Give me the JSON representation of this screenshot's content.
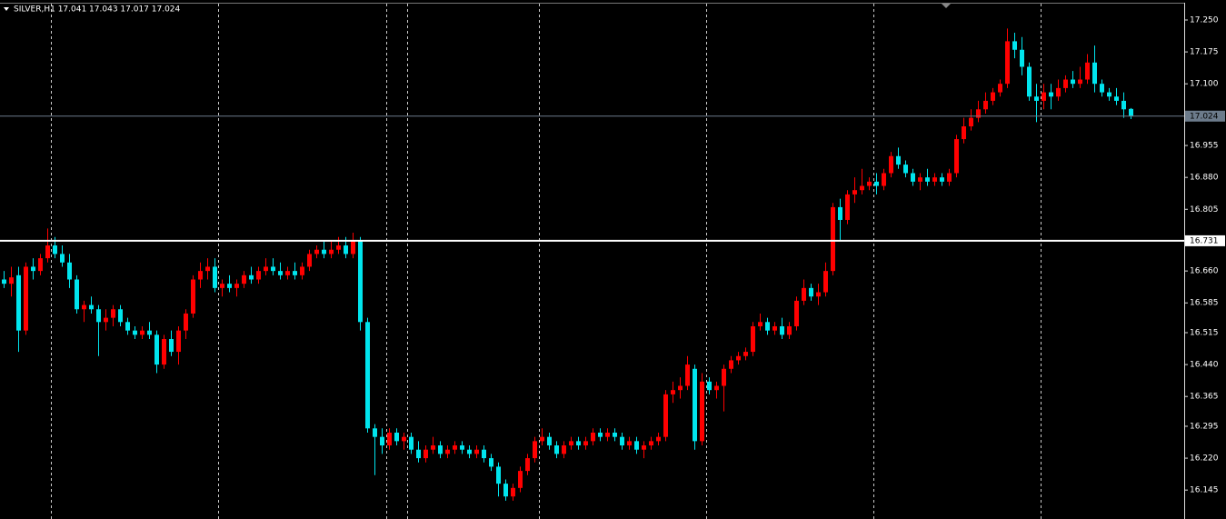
{
  "chart_data": {
    "type": "candlestick",
    "title": "SILVER,H1  17.041 17.043 17.017 17.024",
    "up_color": "#ff0000",
    "down_color": "#00e5ee",
    "ylim": [
      16.077,
      17.297
    ],
    "yticks": [
      {
        "value": 17.25,
        "label": "17.250"
      },
      17.175,
      {
        "value": 17.1,
        "label": "17.100"
      },
      16.955,
      {
        "value": 16.88,
        "label": "16.880"
      },
      16.805,
      {
        "value": 16.66,
        "label": "16.660"
      },
      16.585,
      16.515,
      {
        "value": 16.44,
        "label": "16.440"
      },
      16.365,
      16.295,
      {
        "value": 16.22,
        "label": "16.220"
      },
      16.145
    ],
    "hlines": [
      {
        "value": 17.024,
        "color": "#6c7b8b",
        "width": 1
      },
      {
        "value": 16.731,
        "color": "#ffffff",
        "width": 2
      }
    ],
    "open": [
      16.64,
      16.63,
      16.65,
      16.52,
      16.67,
      16.66,
      16.69,
      16.72,
      16.7,
      16.68,
      16.64,
      16.57,
      16.58,
      16.57,
      16.54,
      16.55,
      16.57,
      16.54,
      16.52,
      16.51,
      16.52,
      16.51,
      16.44,
      16.5,
      16.47,
      16.52,
      16.56,
      16.64,
      16.66,
      16.67,
      16.62,
      16.63,
      16.62,
      16.63,
      16.65,
      16.64,
      16.66,
      16.67,
      16.66,
      16.65,
      16.66,
      16.65,
      16.67,
      16.7,
      16.71,
      16.7,
      16.71,
      16.72,
      16.7,
      16.73,
      16.54,
      16.29,
      16.27,
      16.25,
      16.28,
      16.26,
      16.27,
      16.24,
      16.22,
      16.24,
      16.25,
      16.23,
      16.24,
      16.25,
      16.24,
      16.23,
      16.24,
      16.22,
      16.2,
      16.16,
      16.13,
      16.15,
      16.19,
      16.22,
      16.26,
      16.27,
      16.25,
      16.23,
      16.25,
      16.26,
      16.25,
      16.26,
      16.28,
      16.27,
      16.28,
      16.27,
      16.25,
      16.26,
      16.24,
      16.25,
      16.26,
      16.27,
      16.37,
      16.38,
      16.39,
      16.43,
      16.26,
      16.4,
      16.38,
      16.39,
      16.43,
      16.45,
      16.46,
      16.47,
      16.53,
      16.54,
      16.52,
      16.53,
      16.51,
      16.53,
      16.59,
      16.62,
      16.6,
      16.61,
      16.66,
      16.81,
      16.78,
      16.84,
      16.85,
      16.86,
      16.87,
      16.86,
      16.89,
      16.93,
      16.91,
      16.89,
      16.87,
      16.88,
      16.87,
      16.88,
      16.87,
      16.89,
      16.97,
      17.0,
      17.02,
      17.04,
      17.06,
      17.08,
      17.1,
      17.2,
      17.18,
      17.14,
      17.07,
      17.06,
      17.08,
      17.07,
      17.09,
      17.11,
      17.1,
      17.11,
      17.15,
      17.1,
      17.08,
      17.07,
      17.06,
      17.041
    ],
    "high": [
      16.66,
      16.67,
      16.67,
      16.68,
      16.69,
      16.7,
      16.76,
      16.74,
      16.72,
      16.7,
      16.65,
      16.59,
      16.6,
      16.58,
      16.57,
      16.58,
      16.58,
      16.55,
      16.53,
      16.53,
      16.54,
      16.52,
      16.51,
      16.52,
      16.53,
      16.57,
      16.65,
      16.68,
      16.69,
      16.69,
      16.64,
      16.65,
      16.64,
      16.66,
      16.67,
      16.67,
      16.69,
      16.69,
      16.68,
      16.67,
      16.68,
      16.68,
      16.71,
      16.72,
      16.73,
      16.73,
      16.74,
      16.74,
      16.75,
      16.74,
      16.55,
      16.3,
      16.29,
      16.29,
      16.29,
      16.28,
      16.28,
      16.26,
      16.25,
      16.27,
      16.26,
      16.25,
      16.26,
      16.26,
      16.25,
      16.25,
      16.25,
      16.23,
      16.21,
      16.17,
      16.16,
      16.2,
      16.23,
      16.27,
      16.29,
      16.28,
      16.26,
      16.26,
      16.27,
      16.27,
      16.27,
      16.29,
      16.29,
      16.29,
      16.29,
      16.28,
      16.27,
      16.27,
      16.26,
      16.27,
      16.28,
      16.38,
      16.4,
      16.41,
      16.46,
      16.44,
      16.42,
      16.41,
      16.4,
      16.44,
      16.46,
      16.47,
      16.48,
      16.54,
      16.56,
      16.55,
      16.54,
      16.55,
      16.54,
      16.6,
      16.64,
      16.63,
      16.63,
      16.68,
      16.82,
      16.83,
      16.85,
      16.88,
      16.9,
      16.88,
      16.89,
      16.9,
      16.94,
      16.95,
      16.92,
      16.9,
      16.89,
      16.9,
      16.89,
      16.89,
      16.9,
      16.98,
      17.02,
      17.04,
      17.06,
      17.08,
      17.09,
      17.11,
      17.23,
      17.22,
      17.21,
      17.15,
      17.1,
      17.1,
      17.1,
      17.11,
      17.12,
      17.13,
      17.14,
      17.17,
      17.19,
      17.11,
      17.09,
      17.09,
      17.08,
      17.043
    ],
    "low": [
      16.62,
      16.6,
      16.47,
      16.51,
      16.64,
      16.65,
      16.68,
      16.69,
      16.67,
      16.62,
      16.56,
      16.54,
      16.56,
      16.46,
      16.52,
      16.53,
      16.53,
      16.51,
      16.5,
      16.5,
      16.5,
      16.42,
      16.43,
      16.46,
      16.44,
      16.5,
      16.55,
      16.62,
      16.64,
      16.61,
      16.6,
      16.61,
      16.6,
      16.62,
      16.63,
      16.63,
      16.65,
      16.65,
      16.64,
      16.64,
      16.64,
      16.64,
      16.66,
      16.69,
      16.69,
      16.69,
      16.7,
      16.69,
      16.69,
      16.52,
      16.28,
      16.18,
      16.23,
      16.24,
      16.25,
      16.24,
      16.23,
      16.21,
      16.21,
      16.23,
      16.22,
      16.22,
      16.23,
      16.23,
      16.22,
      16.22,
      16.21,
      16.19,
      16.13,
      16.12,
      16.12,
      16.14,
      16.18,
      16.21,
      16.25,
      16.24,
      16.22,
      16.22,
      16.24,
      16.24,
      16.24,
      16.25,
      16.26,
      16.26,
      16.26,
      16.24,
      16.24,
      16.23,
      16.22,
      16.24,
      16.25,
      16.26,
      16.35,
      16.36,
      16.38,
      16.24,
      16.25,
      16.37,
      16.36,
      16.33,
      16.42,
      16.44,
      16.45,
      16.46,
      16.52,
      16.51,
      16.51,
      16.5,
      16.5,
      16.52,
      16.58,
      16.59,
      16.58,
      16.6,
      16.65,
      16.73,
      16.77,
      16.82,
      16.84,
      16.85,
      16.84,
      16.85,
      16.88,
      16.9,
      16.88,
      16.86,
      16.85,
      16.86,
      16.86,
      16.86,
      16.86,
      16.88,
      16.96,
      16.99,
      17.01,
      17.03,
      17.05,
      17.07,
      17.09,
      17.16,
      17.12,
      17.06,
      17.01,
      17.04,
      17.04,
      17.06,
      17.08,
      17.09,
      17.09,
      17.1,
      17.08,
      17.07,
      17.06,
      17.05,
      17.02,
      17.017
    ],
    "close": [
      16.63,
      16.645,
      16.52,
      16.67,
      16.66,
      16.69,
      16.72,
      16.7,
      16.68,
      16.64,
      16.57,
      16.58,
      16.57,
      16.54,
      16.55,
      16.57,
      16.54,
      16.52,
      16.51,
      16.52,
      16.51,
      16.44,
      16.5,
      16.47,
      16.52,
      16.56,
      16.64,
      16.66,
      16.67,
      16.62,
      16.63,
      16.62,
      16.63,
      16.65,
      16.64,
      16.66,
      16.67,
      16.66,
      16.65,
      16.66,
      16.65,
      16.67,
      16.7,
      16.71,
      16.7,
      16.71,
      16.72,
      16.7,
      16.73,
      16.54,
      16.29,
      16.27,
      16.25,
      16.28,
      16.26,
      16.27,
      16.24,
      16.22,
      16.24,
      16.25,
      16.23,
      16.24,
      16.25,
      16.24,
      16.23,
      16.24,
      16.22,
      16.2,
      16.16,
      16.13,
      16.15,
      16.19,
      16.22,
      16.26,
      16.27,
      16.25,
      16.23,
      16.25,
      16.26,
      16.25,
      16.26,
      16.28,
      16.27,
      16.28,
      16.27,
      16.25,
      16.26,
      16.24,
      16.25,
      16.26,
      16.27,
      16.37,
      16.38,
      16.39,
      16.44,
      16.26,
      16.4,
      16.38,
      16.39,
      16.43,
      16.45,
      16.46,
      16.47,
      16.53,
      16.54,
      16.52,
      16.53,
      16.51,
      16.53,
      16.59,
      16.62,
      16.6,
      16.61,
      16.66,
      16.81,
      16.78,
      16.84,
      16.85,
      16.86,
      16.87,
      16.86,
      16.89,
      16.93,
      16.91,
      16.89,
      16.87,
      16.88,
      16.87,
      16.88,
      16.87,
      16.89,
      16.97,
      17.0,
      17.02,
      17.04,
      17.06,
      17.08,
      17.1,
      17.2,
      17.18,
      17.14,
      17.07,
      17.06,
      17.08,
      17.07,
      17.09,
      17.11,
      17.1,
      17.11,
      17.15,
      17.1,
      17.08,
      17.07,
      17.06,
      17.04,
      17.024
    ]
  }
}
